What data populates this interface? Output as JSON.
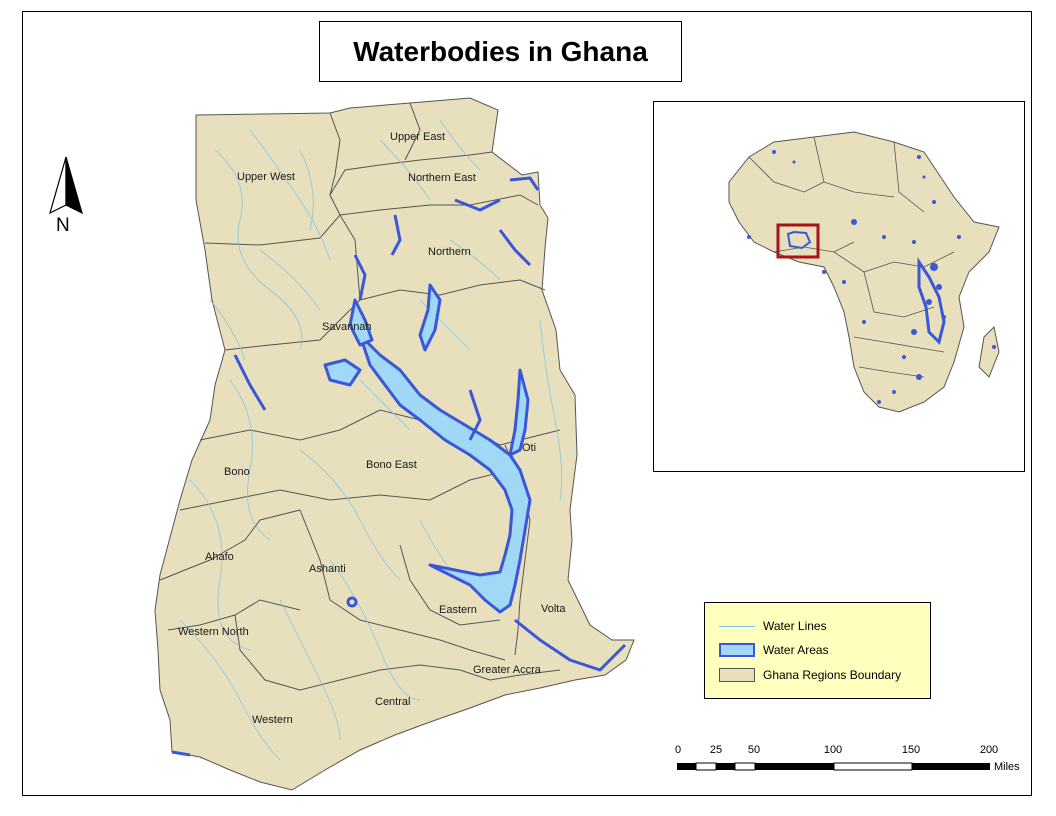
{
  "title": "Waterbodies in Ghana",
  "north_arrow": {
    "label": "N",
    "icon": "north-arrow-icon"
  },
  "regions": [
    {
      "name": "Upper East"
    },
    {
      "name": "Upper West"
    },
    {
      "name": "Northern East"
    },
    {
      "name": "Northern"
    },
    {
      "name": "Savannah"
    },
    {
      "name": "Oti"
    },
    {
      "name": "Bono"
    },
    {
      "name": "Bono East"
    },
    {
      "name": "Ahafo"
    },
    {
      "name": "Ashanti"
    },
    {
      "name": "Eastern"
    },
    {
      "name": "Volta"
    },
    {
      "name": "Western North"
    },
    {
      "name": "Greater Accra"
    },
    {
      "name": "Central"
    },
    {
      "name": "Western"
    }
  ],
  "legend": {
    "items": [
      {
        "label": "Water Lines",
        "symbol": "line"
      },
      {
        "label": "Water Areas",
        "symbol": "water-area"
      },
      {
        "label": "Ghana Regions Boundary",
        "symbol": "region-polygon"
      }
    ]
  },
  "scale_bar": {
    "ticks": [
      "0",
      "25",
      "50",
      "100",
      "150",
      "200"
    ],
    "unit": "Miles"
  },
  "colors": {
    "land": "#e8dfbc",
    "water_area_fill": "#a0d8f5",
    "water_area_outline": "#3a57d9",
    "water_lines": "#7ac7e9",
    "boundaries": "#555555",
    "legend_bg": "#ffffbe",
    "inset_highlight": "#a8131b"
  }
}
